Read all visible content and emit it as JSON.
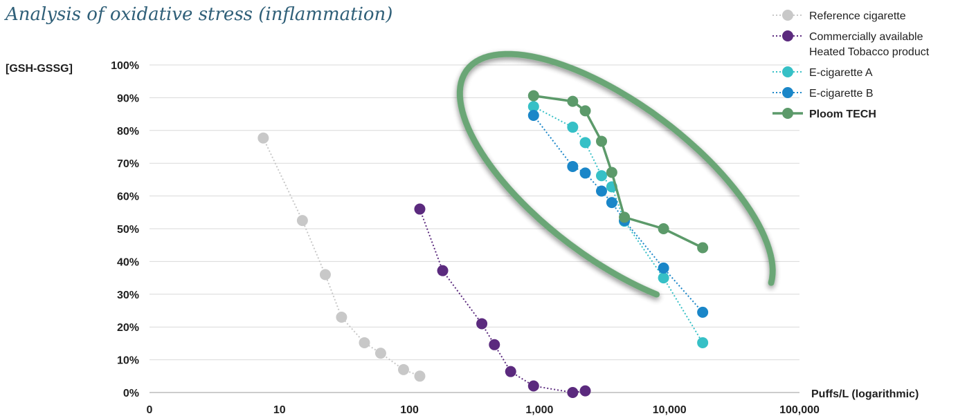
{
  "chart_data": {
    "type": "scatter",
    "title": "Analysis of oxidative stress (inflammation)",
    "xlabel": "Puffs/L (logarithmic)",
    "ylabel": "[GSH-GSSG]",
    "x_scale": "log",
    "x_ticks": [
      "0",
      "10",
      "100",
      "1,000",
      "10,000",
      "100,000"
    ],
    "y_ticks": [
      "0%",
      "10%",
      "20%",
      "30%",
      "40%",
      "50%",
      "60%",
      "70%",
      "80%",
      "90%",
      "100%"
    ],
    "xlim": [
      1,
      100000
    ],
    "ylim": [
      0,
      100
    ],
    "grid": "horizontal",
    "legend_position": "top-right",
    "series": [
      {
        "name": "Reference cigarette",
        "color": "#c8c8c8",
        "line": "dotted",
        "x": [
          7.5,
          15,
          22.5,
          30,
          45,
          60,
          90,
          120
        ],
        "y": [
          77.7,
          52.5,
          36,
          23,
          15.2,
          12,
          7,
          5
        ]
      },
      {
        "name": "Commercially available Heated Tobacco product",
        "color": "#5b2a7e",
        "line": "dotted",
        "x": [
          120,
          180,
          360,
          450,
          600,
          900,
          1800,
          2250
        ],
        "y": [
          56,
          37.2,
          21,
          14.6,
          6.4,
          2,
          0,
          0.5
        ]
      },
      {
        "name": "E-cigarette A",
        "color": "#36c0c6",
        "line": "dotted",
        "x": [
          900,
          1800,
          2250,
          3000,
          3600,
          4500,
          9000,
          18000
        ],
        "y": [
          87.3,
          81,
          76.3,
          66.2,
          62.8,
          52.3,
          35,
          15.2
        ]
      },
      {
        "name": "E-cigarette B",
        "color": "#1a86c8",
        "line": "dotted",
        "x": [
          900,
          1800,
          2250,
          3000,
          3600,
          4500,
          9000,
          18000
        ],
        "y": [
          84.6,
          69,
          67,
          61.5,
          58,
          52.5,
          38,
          24.5
        ]
      },
      {
        "name": "Ploom TECH",
        "color": "#5c9a6a",
        "line": "solid",
        "x": [
          900,
          1800,
          2250,
          3000,
          3600,
          4500,
          9000,
          18000
        ],
        "y": [
          90.6,
          88.9,
          86,
          76.7,
          67.2,
          53.5,
          50,
          44.2
        ]
      }
    ],
    "legend": [
      {
        "lines": [
          "Reference cigarette"
        ],
        "bold": false
      },
      {
        "lines": [
          "Commercially available",
          "Heated Tobacco product"
        ],
        "bold": false
      },
      {
        "lines": [
          "E-cigarette A"
        ],
        "bold": false
      },
      {
        "lines": [
          "E-cigarette B"
        ],
        "bold": false
      },
      {
        "lines": [
          "Ploom TECH"
        ],
        "bold": true
      }
    ],
    "highlight": {
      "description": "green ellipse around Ploom TECH cluster",
      "color": "#6aa676"
    }
  }
}
